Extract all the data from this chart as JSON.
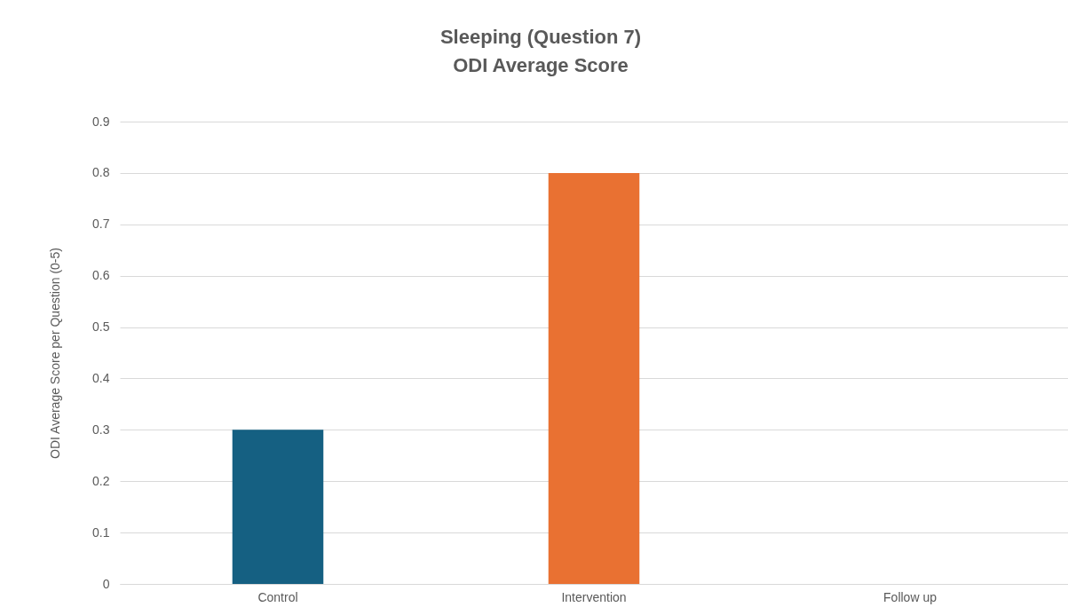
{
  "chart_data": {
    "type": "bar",
    "title": [
      "Sleeping  (Question 7)",
      "ODI Average Score"
    ],
    "ylabel": "ODI Average Score per Question (0-5)",
    "categories": [
      "Control",
      "Intervention",
      "Follow up"
    ],
    "values": [
      0.3,
      0.8,
      0
    ],
    "colors": [
      "#156082",
      "#e97132",
      "#196b24"
    ],
    "ylim": [
      0,
      0.9
    ],
    "yticks": [
      {
        "value": 0,
        "label": "0"
      },
      0.1,
      0.2,
      0.3,
      0.4,
      0.5,
      0.6,
      0.7,
      0.8,
      0.9
    ],
    "grid": "y",
    "legend": false
  }
}
